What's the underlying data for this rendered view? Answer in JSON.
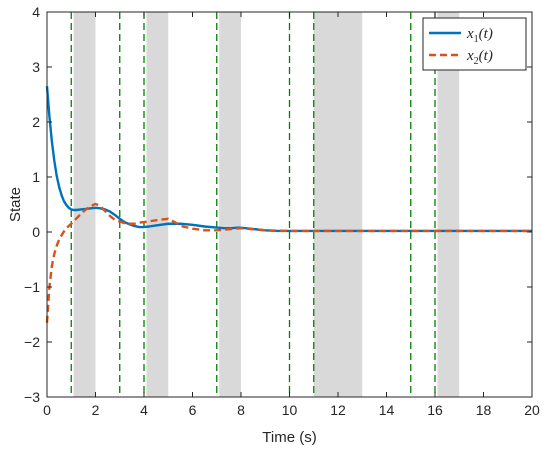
{
  "chart_data": {
    "type": "line",
    "title": "",
    "xlabel": "Time (s)",
    "ylabel": "State",
    "xlim": [
      0,
      20
    ],
    "ylim": [
      -3,
      4
    ],
    "x_ticks": [
      0,
      2,
      4,
      6,
      8,
      10,
      12,
      14,
      16,
      18,
      20
    ],
    "y_ticks": [
      -3,
      -2,
      -1,
      0,
      1,
      2,
      3,
      4
    ],
    "x_tick_labels": [
      "0",
      "2",
      "4",
      "6",
      "8",
      "10",
      "12",
      "14",
      "16",
      "18",
      "20"
    ],
    "y_tick_labels": [
      "−3",
      "−2",
      "−1",
      "0",
      "1",
      "2",
      "3",
      "4"
    ],
    "grid": false,
    "legend_position": "top-right",
    "legend": [
      {
        "base": "x",
        "sub": "1",
        "arg": "(t)"
      },
      {
        "base": "x",
        "sub": "2",
        "arg": "(t)"
      }
    ],
    "shaded_intervals": [
      [
        1.1,
        2.0
      ],
      [
        4.1,
        5.0
      ],
      [
        7.1,
        8.0
      ],
      [
        11.0,
        13.0
      ],
      [
        16.1,
        17.0
      ]
    ],
    "event_lines": [
      1.0,
      3.0,
      4.0,
      7.0,
      10.0,
      11.0,
      15.0,
      16.0
    ],
    "series": [
      {
        "key": "x1",
        "color": "#0072BD",
        "style": "solid",
        "x": [
          0,
          0.1,
          0.2,
          0.3,
          0.4,
          0.5,
          0.6,
          0.7,
          0.8,
          0.9,
          1.0,
          1.1,
          1.2,
          1.4,
          1.6,
          1.8,
          2.0,
          2.2,
          2.4,
          2.6,
          2.8,
          3.0,
          3.2,
          3.4,
          3.6,
          3.8,
          4.0,
          4.2,
          4.5,
          5.0,
          5.5,
          6.0,
          6.5,
          7.0,
          7.3,
          7.6,
          7.9,
          8.2,
          8.6,
          9.0,
          9.5,
          10.0,
          11.0,
          12.0,
          14.0,
          16.0,
          18.0,
          20.0
        ],
        "y": [
          2.65,
          2.1,
          1.65,
          1.3,
          1.02,
          0.82,
          0.67,
          0.56,
          0.49,
          0.44,
          0.41,
          0.4,
          0.4,
          0.41,
          0.42,
          0.43,
          0.44,
          0.43,
          0.41,
          0.37,
          0.31,
          0.24,
          0.18,
          0.14,
          0.11,
          0.09,
          0.09,
          0.1,
          0.12,
          0.15,
          0.15,
          0.13,
          0.1,
          0.08,
          0.07,
          0.07,
          0.08,
          0.07,
          0.05,
          0.03,
          0.02,
          0.02,
          0.02,
          0.02,
          0.02,
          0.02,
          0.02,
          0.02
        ]
      },
      {
        "key": "x2",
        "color": "#D95319",
        "style": "dashed",
        "x": [
          0,
          0.1,
          0.2,
          0.3,
          0.4,
          0.5,
          0.6,
          0.7,
          0.8,
          0.9,
          1.0,
          1.2,
          1.4,
          1.6,
          1.8,
          2.0,
          2.2,
          2.4,
          2.6,
          2.8,
          3.0,
          3.2,
          3.4,
          3.6,
          3.8,
          4.0,
          4.3,
          4.6,
          5.0,
          5.3,
          5.6,
          6.0,
          6.5,
          7.0,
          7.5,
          8.0,
          8.5,
          9.0,
          10.0,
          11.0,
          12.0,
          14.0,
          16.0,
          18.0,
          20.0
        ],
        "y": [
          -1.65,
          -1.0,
          -0.62,
          -0.4,
          -0.25,
          -0.14,
          -0.06,
          0.01,
          0.07,
          0.11,
          0.15,
          0.24,
          0.33,
          0.41,
          0.47,
          0.51,
          0.47,
          0.38,
          0.29,
          0.22,
          0.19,
          0.16,
          0.15,
          0.15,
          0.17,
          0.18,
          0.2,
          0.22,
          0.24,
          0.17,
          0.1,
          0.06,
          0.03,
          0.03,
          0.05,
          0.07,
          0.05,
          0.03,
          0.02,
          0.02,
          0.02,
          0.02,
          0.02,
          0.02,
          0.02
        ]
      }
    ]
  }
}
